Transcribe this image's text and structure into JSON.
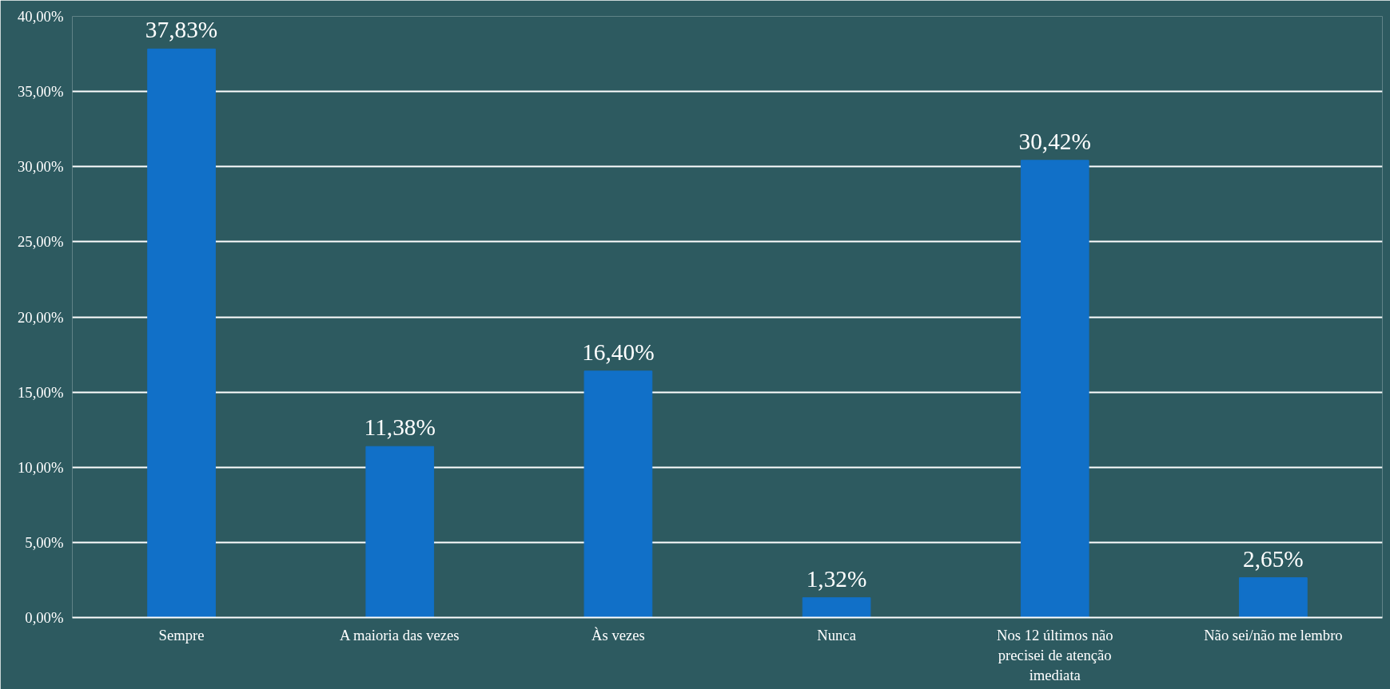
{
  "chart_data": {
    "type": "bar",
    "categories": [
      "Sempre",
      "A maioria das vezes",
      "Às vezes",
      "Nunca",
      "Nos 12 últimos não precisei de atenção imediata",
      "Não sei/não me lembro"
    ],
    "values": [
      37.83,
      11.38,
      16.4,
      1.32,
      30.42,
      2.65
    ],
    "value_labels": [
      "37,83%",
      "11,38%",
      "16,40%",
      "1,32%",
      "30,42%",
      "2,65%"
    ],
    "color": "#1170c8",
    "ylim": [
      0,
      40
    ],
    "yticks": [
      {
        "value": 0,
        "label": "0,00%"
      },
      {
        "value": 5,
        "label": "5,00%"
      },
      {
        "value": 10,
        "label": "10,00%"
      },
      {
        "value": 15,
        "label": "15,00%"
      },
      {
        "value": 20,
        "label": "20,00%"
      },
      {
        "value": 25,
        "label": "25,00%"
      },
      {
        "value": 30,
        "label": "30,00%"
      },
      {
        "value": 35,
        "label": "35,00%"
      },
      {
        "value": 40,
        "label": "40,00%"
      }
    ],
    "grid": "y"
  }
}
